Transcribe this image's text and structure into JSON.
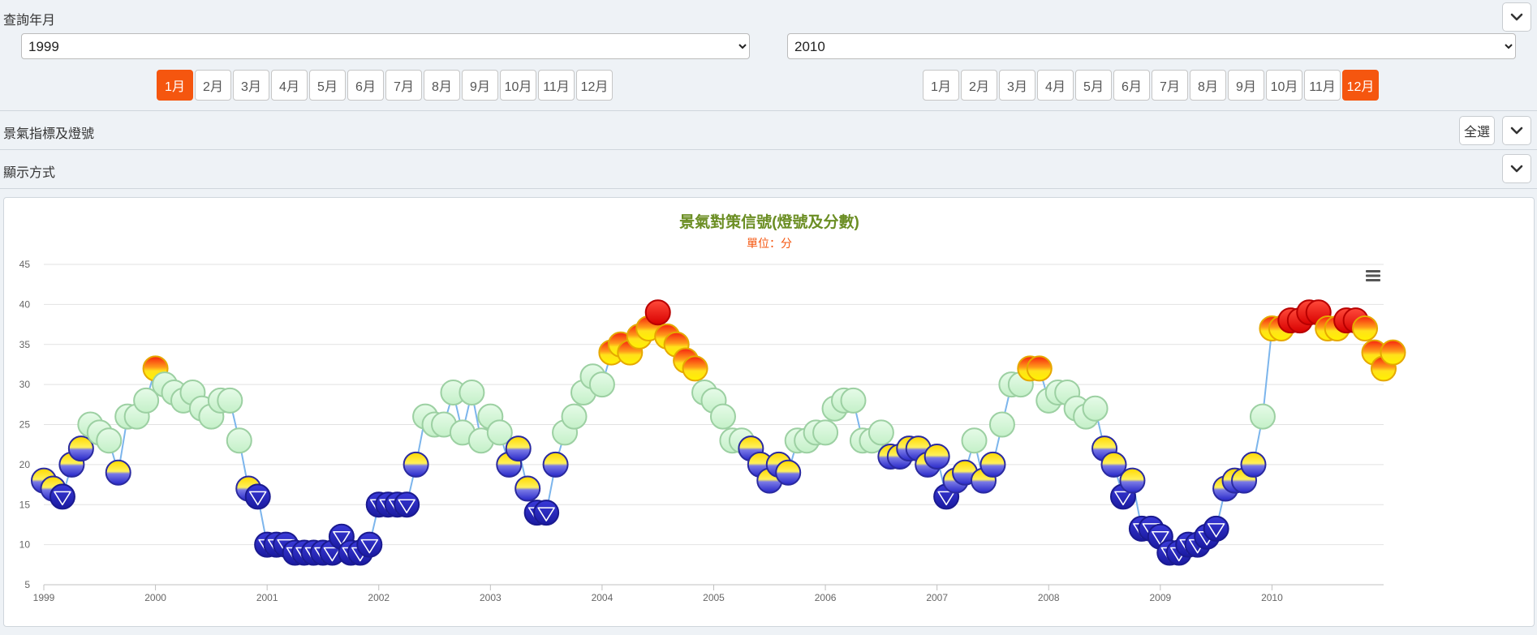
{
  "query_period": {
    "label": "查詢年月",
    "start_year": "1999",
    "end_year": "2010",
    "months": [
      "1月",
      "2月",
      "3月",
      "4月",
      "5月",
      "6月",
      "7月",
      "8月",
      "9月",
      "10月",
      "11月",
      "12月"
    ],
    "start_month_selected": "1月",
    "end_month_selected": "12月"
  },
  "indicator_section": {
    "label": "景氣指標及燈號",
    "select_all_label": "全選"
  },
  "display_section": {
    "label": "顯示方式"
  },
  "colors": {
    "accent": "#f5560f",
    "title": "#6b8e23",
    "line": "#7cb5ec",
    "subtitle": "#f5560f"
  },
  "chart_data": {
    "type": "line",
    "title": "景氣對策信號(燈號及分數)",
    "subtitle": "單位：分",
    "ylim": [
      5,
      45
    ],
    "yticks": [
      5,
      10,
      15,
      20,
      25,
      30,
      35,
      40,
      45
    ],
    "xticks": [
      "1999",
      "2000",
      "2001",
      "2002",
      "2003",
      "2004",
      "2005",
      "2006",
      "2007",
      "2008",
      "2009",
      "2010"
    ],
    "x_start": "1999-01",
    "signal_legend": {
      "blue": "<=16",
      "yellow-blue": "17-22",
      "green": "23-31",
      "yellow-red": "32-37",
      "red": ">=38"
    },
    "values": [
      18,
      17,
      16,
      20,
      22,
      25,
      24,
      23,
      19,
      26,
      26,
      28,
      32,
      30,
      29,
      28,
      29,
      27,
      26,
      28,
      28,
      23,
      17,
      16,
      10,
      10,
      10,
      9,
      9,
      9,
      9,
      9,
      11,
      9,
      9,
      10,
      15,
      15,
      15,
      15,
      20,
      26,
      25,
      25,
      29,
      24,
      29,
      23,
      26,
      24,
      20,
      22,
      17,
      14,
      14,
      20,
      24,
      26,
      29,
      31,
      30,
      34,
      35,
      34,
      36,
      37,
      39,
      36,
      35,
      33,
      32,
      29,
      28,
      26,
      23,
      23,
      22,
      20,
      18,
      20,
      19,
      23,
      23,
      24,
      24,
      27,
      28,
      28,
      23,
      23,
      24,
      21,
      21,
      22,
      22,
      20,
      21,
      16,
      18,
      19,
      23,
      18,
      20,
      25,
      30,
      30,
      32,
      32,
      28,
      29,
      29,
      27,
      26,
      27,
      22,
      20,
      16,
      18,
      12,
      12,
      11,
      9,
      9,
      10,
      10,
      11,
      12,
      17,
      18,
      18,
      20,
      26,
      37,
      37,
      38,
      38,
      39,
      39,
      37,
      37,
      38,
      38,
      37,
      34,
      32,
      34
    ]
  }
}
